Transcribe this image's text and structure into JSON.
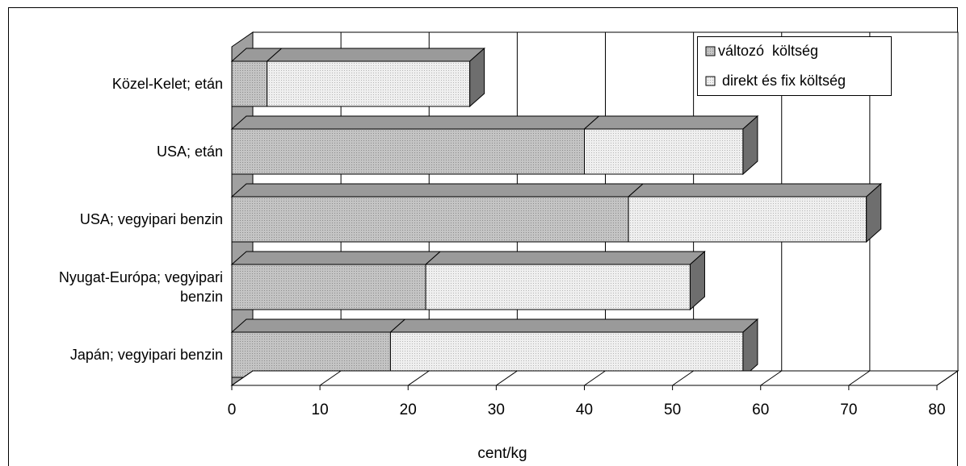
{
  "chart_data": {
    "type": "bar",
    "orientation": "horizontal",
    "stacked": true,
    "three_d": true,
    "categories": [
      [
        "Közel-Kelet; etán"
      ],
      [
        "USA; etán"
      ],
      [
        "USA; vegyipari benzin"
      ],
      [
        "Nyugat-Európa; vegyipari",
        "benzin"
      ],
      [
        "Japán; vegyipari benzin"
      ]
    ],
    "series": [
      {
        "name": "változó  költség",
        "values": [
          4,
          40,
          45,
          22,
          18
        ],
        "color": "#bcbcbc"
      },
      {
        "name": "direkt és fix költség",
        "values": [
          23,
          18,
          27,
          30,
          40
        ],
        "color": "#e6e6e6"
      }
    ],
    "xlabel": "cent/kg",
    "xlim": [
      0,
      80
    ],
    "xticks": [
      "0",
      "10",
      "20",
      "30",
      "40",
      "50",
      "60",
      "70",
      "80"
    ],
    "grid": true,
    "legend_position": "top-right"
  }
}
